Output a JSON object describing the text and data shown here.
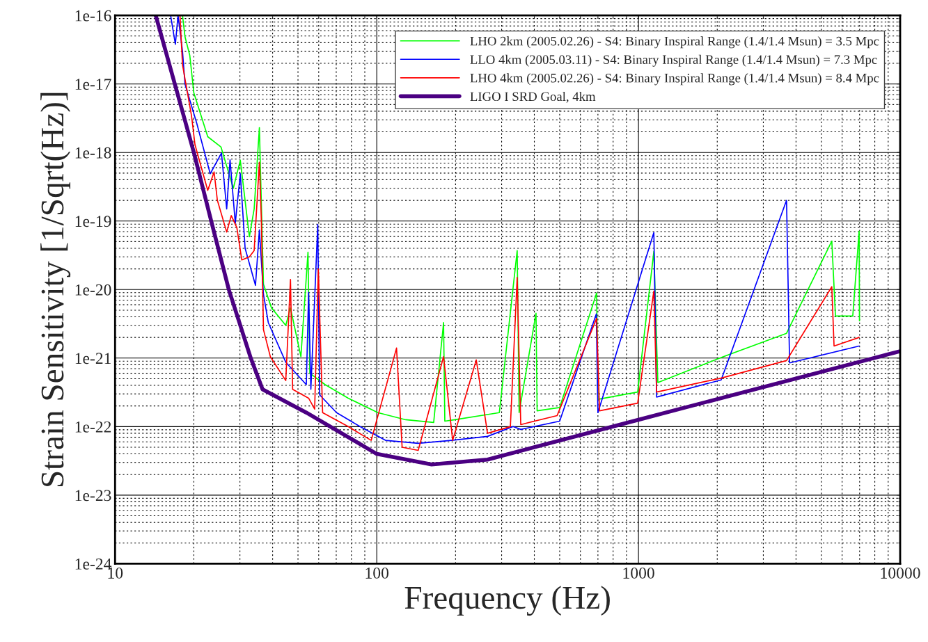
{
  "chart_data": {
    "type": "line",
    "xlabel": "Frequency (Hz)",
    "ylabel": "Strain Sensitivity [1/Sqrt(Hz)]",
    "log": "xy",
    "grid": true,
    "legend": "top right",
    "xlim": [
      10,
      10000
    ],
    "xticks": [
      10,
      100,
      1000,
      10000
    ],
    "ylim": [
      1e-24,
      1e-16
    ],
    "yticks": [
      {
        "value": 1e-24,
        "label": "1e-24"
      },
      {
        "value": 1e-23,
        "label": "1e-23"
      },
      {
        "value": 1e-22,
        "label": "1e-22"
      },
      {
        "value": 1e-21,
        "label": "1e-21"
      },
      {
        "value": 1e-20,
        "label": "1e-20"
      },
      {
        "value": 1e-19,
        "label": "1e-19"
      },
      {
        "value": 1e-18,
        "label": "1e-18"
      },
      {
        "value": 1e-17,
        "label": "1e-17"
      },
      {
        "value": 1e-16,
        "label": "1e-16"
      }
    ],
    "series": [
      {
        "name": "LHO 2km (2005.02.26) - S4: Binary Inspiral Range (1.4/1.4 Msun) = 3.5 Mpc",
        "color": "#00ff00",
        "x": [
          18.1,
          18.5,
          19.3,
          20.0,
          22.6,
          25.4,
          28.3,
          30.1,
          32.6,
          34.0,
          35.6,
          36.9,
          39.6,
          44.9,
          46.8,
          51.3,
          54.6,
          55.5,
          63.5,
          77.8,
          101,
          129,
          165,
          180,
          182,
          199,
          294,
          344,
          350,
          406,
          410,
          500,
          692,
          700,
          993,
          1145,
          1186,
          2070,
          3680,
          5480,
          5660,
          6590,
          6970,
          6990
        ],
        "values": [
          1e-16,
          4.9e-17,
          2.6e-17,
          7.4e-18,
          1.7e-18,
          1.2e-18,
          3e-19,
          7.7e-19,
          5.9e-20,
          1.5e-19,
          2.3e-18,
          1.2e-20,
          5.4e-21,
          3e-21,
          5.4e-21,
          1.05e-21,
          3.5e-20,
          6e-22,
          4.1e-22,
          2.6e-22,
          1.6e-22,
          1.26e-22,
          1.15e-22,
          3.3e-21,
          1.2e-22,
          1.26e-22,
          1.6e-22,
          3.7e-20,
          1.6e-22,
          4.5e-21,
          1.7e-22,
          1.9e-22,
          8.9e-21,
          2.5e-22,
          3.2e-22,
          3.6e-20,
          4.4e-22,
          1.02e-21,
          2.3e-21,
          5.1e-20,
          4.1e-21,
          4.1e-21,
          7.1e-20,
          3.5e-21
        ]
      },
      {
        "name": "LLO 4km (2005.03.11) - S4: Binary Inspiral Range (1.4/1.4 Msun) = 7.3 Mpc",
        "color": "#0000ff",
        "x": [
          16.3,
          17.0,
          17.4,
          18.1,
          18.5,
          20.5,
          23.1,
          25.5,
          26.7,
          27.5,
          28.8,
          30.1,
          31.4,
          34.4,
          35.6,
          36.9,
          38.5,
          44.9,
          53.8,
          54.9,
          56.0,
          59.5,
          60.5,
          70.2,
          86.3,
          108,
          144,
          193,
          265,
          332,
          355,
          500,
          690,
          700,
          1145,
          1173,
          2070,
          3680,
          3780,
          6970
        ],
        "values": [
          1e-16,
          3.8e-17,
          1e-16,
          3e-17,
          1e-17,
          2.7e-18,
          4.9e-19,
          9.8e-19,
          1.5e-19,
          7.8e-19,
          9.3e-20,
          4.9e-19,
          4e-20,
          1.15e-20,
          7.4e-20,
          8.5e-21,
          3.3e-21,
          8.7e-22,
          4.1e-22,
          9.1e-21,
          3.5e-22,
          8.9e-20,
          2.9e-22,
          1.6e-22,
          1e-22,
          6.3e-23,
          5.7e-23,
          6.3e-23,
          7.2e-23,
          1e-22,
          9.1e-23,
          1.2e-22,
          4.4e-21,
          1.6e-22,
          6.8e-20,
          2.7e-22,
          4.8e-22,
          2e-19,
          8.5e-22,
          1.5e-21
        ]
      },
      {
        "name": "LHO 4km (2005.02.26) - S4: Binary Inspiral Range (1.4/1.4 Msun) = 8.4 Mpc",
        "color": "#ff0000",
        "x": [
          17.7,
          18.1,
          19.6,
          20.2,
          22.6,
          23.9,
          24.6,
          26.7,
          27.8,
          29.2,
          30.5,
          32.6,
          34.0,
          35.6,
          36.2,
          36.9,
          39.2,
          44.9,
          46.8,
          47.7,
          54.9,
          57.9,
          59.8,
          62.1,
          77.8,
          95.2,
          119,
          125,
          144,
          180,
          195,
          240,
          265,
          324,
          344,
          355,
          489,
          692,
          710,
          993,
          1145,
          1173,
          2070,
          3680,
          5480,
          5590,
          6970
        ],
        "values": [
          1e-16,
          1.9e-17,
          3.4e-18,
          1.3e-18,
          2.8e-19,
          5.2e-19,
          2e-19,
          6.9e-20,
          1.2e-19,
          8e-20,
          2.7e-20,
          3e-20,
          3.7e-20,
          7.2e-19,
          1.1e-19,
          2.6e-21,
          1.05e-21,
          4.7e-22,
          1.4e-20,
          3.5e-22,
          2.6e-22,
          1.8e-22,
          2e-20,
          1.6e-22,
          1e-22,
          6.3e-23,
          1.4e-21,
          5e-23,
          4.5e-23,
          1.05e-21,
          6.3e-23,
          9.4e-22,
          8e-23,
          1e-22,
          1.5e-20,
          1.07e-22,
          1.45e-22,
          3.8e-21,
          1.7e-22,
          2.2e-22,
          9.5e-21,
          3.2e-22,
          5.1e-22,
          9.2e-22,
          1.1e-20,
          1.5e-21,
          2e-21
        ]
      },
      {
        "name": "LIGO I SRD Goal, 4km",
        "color": "#4b0082",
        "x": [
          14.3,
          20,
          23.3,
          27.2,
          33,
          36.6,
          53.8,
          100,
          162,
          265,
          1000,
          10000
        ],
        "values": [
          1e-16,
          1e-18,
          1e-19,
          1e-20,
          1e-21,
          3.5e-22,
          1.6e-22,
          4e-23,
          2.8e-23,
          3.3e-23,
          1.26e-22,
          1.26e-21
        ]
      }
    ]
  }
}
